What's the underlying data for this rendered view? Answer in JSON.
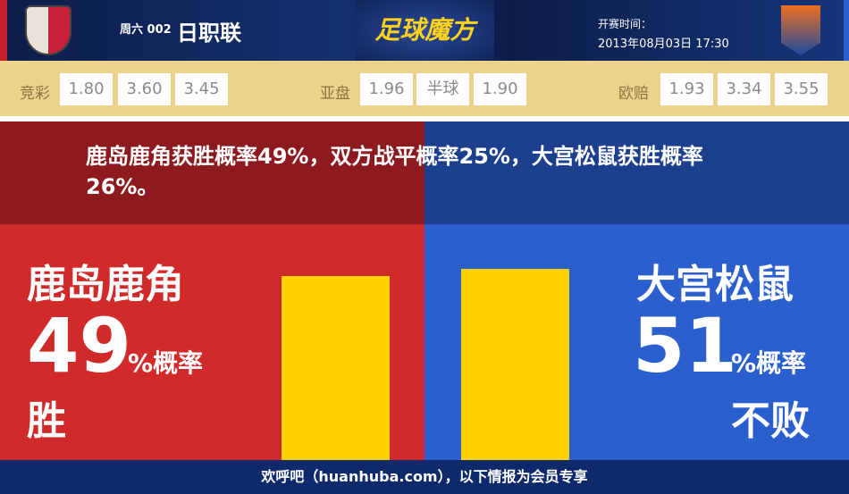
{
  "header": {
    "weekday_no": "周六 002",
    "league": "日职联",
    "brand": "足球魔方",
    "kickoff_label": "开赛时间：",
    "kickoff_time": "2013年08月03日 17:30"
  },
  "odds": {
    "jingcai": {
      "label": "竞彩",
      "values": [
        "1.80",
        "3.60",
        "3.45"
      ]
    },
    "yapan": {
      "label": "亚盘",
      "values": [
        "1.96",
        "半球",
        "1.90"
      ]
    },
    "ouzhou": {
      "label": "欧赔",
      "values": [
        "1.93",
        "3.34",
        "3.55"
      ]
    }
  },
  "message": "鹿岛鹿角获胜概率49%，双方战平概率25%，大宫松鼠获胜概率26%。",
  "home": {
    "name": "鹿岛鹿角",
    "percent": "49",
    "percent_label": "%概率",
    "result": "胜",
    "bar_value": 49,
    "color": "#d12a2a"
  },
  "away": {
    "name": "大宫松鼠",
    "percent": "51",
    "percent_label": "%概率",
    "result": "不败",
    "bar_value": 51,
    "color": "#2b5fce"
  },
  "footer": "欢呼吧（huanhuba.com），以下情报为会员专享"
}
